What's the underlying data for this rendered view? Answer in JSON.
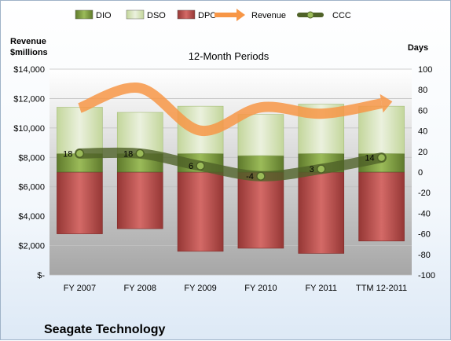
{
  "chart_data": {
    "type": "bar",
    "title": "12-Month Periods",
    "company": "Seagate Technology",
    "categories": [
      "FY 2007",
      "FY 2008",
      "FY 2009",
      "FY 2010",
      "FY 2011",
      "TTM 12-2011"
    ],
    "left_axis": {
      "label_line1": "Revenue",
      "label_line2": "$millions",
      "range": [
        0,
        14000
      ],
      "ticks": [
        "$-",
        "$2,000",
        "$4,000",
        "$6,000",
        "$8,000",
        "$10,000",
        "$12,000",
        "$14,000"
      ]
    },
    "right_axis": {
      "label": "Days",
      "range": [
        -100,
        100
      ],
      "ticks": [
        "-100",
        "-80",
        "-60",
        "-40",
        "-20",
        "0",
        "20",
        "40",
        "60",
        "80",
        "100"
      ]
    },
    "stacked_days": {
      "DPO": [
        -60,
        -55,
        -77,
        -74,
        -79,
        -67
      ],
      "DIO": [
        18,
        18,
        18,
        16,
        18,
        18
      ],
      "DSO": [
        45,
        40,
        46,
        40,
        48,
        46
      ]
    },
    "series": [
      {
        "name": "DIO",
        "axis": "right",
        "values": [
          18,
          18,
          18,
          16,
          18,
          18
        ]
      },
      {
        "name": "DSO",
        "axis": "right",
        "values": [
          45,
          40,
          46,
          40,
          48,
          46
        ]
      },
      {
        "name": "DPO",
        "axis": "right",
        "values": [
          -60,
          -55,
          -77,
          -74,
          -79,
          -67
        ]
      },
      {
        "name": "Revenue",
        "axis": "left",
        "values": [
          11360,
          12710,
          9820,
          11400,
          10970,
          11670
        ]
      },
      {
        "name": "CCC",
        "axis": "right",
        "values": [
          18,
          18,
          6,
          -4,
          3,
          14
        ]
      }
    ],
    "ccc_labels": [
      "18",
      "18",
      "6",
      "-4",
      "3",
      "14"
    ],
    "legend": [
      {
        "name": "DIO",
        "kind": "bar",
        "color": "#77933c"
      },
      {
        "name": "DSO",
        "kind": "bar",
        "color": "#d7e4bd"
      },
      {
        "name": "DPO",
        "kind": "bar",
        "color": "#c0504d"
      },
      {
        "name": "Revenue",
        "kind": "arrow",
        "color": "#f79646"
      },
      {
        "name": "CCC",
        "kind": "line",
        "color": "#4f6228"
      }
    ],
    "legend_position": "top",
    "grid": true,
    "colors": {
      "dio": "#77933c",
      "dso": "#d7e4bd",
      "dpo": "#c0504d",
      "revenue": "#f79646",
      "ccc": "#4f6228"
    }
  }
}
